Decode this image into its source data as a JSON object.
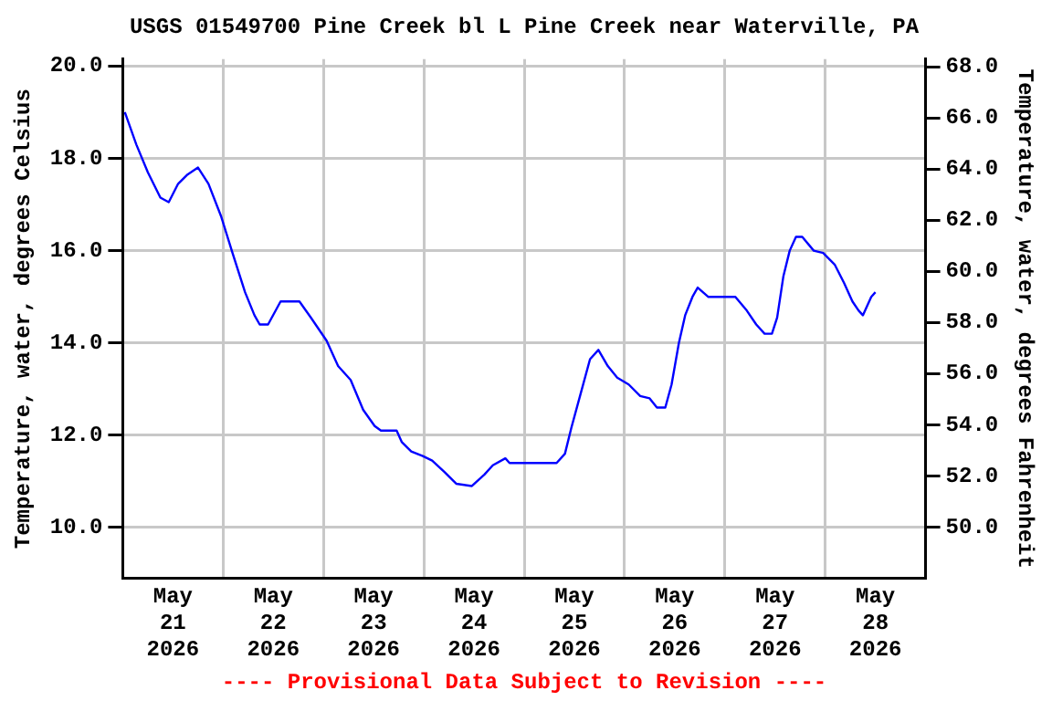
{
  "chart_data": {
    "type": "line",
    "title": "USGS 01549700 Pine Creek bl L Pine Creek near Waterville, PA",
    "ylabel": "Temperature, water, degrees Celsius",
    "y2label": "Temperature, water, degrees Fahrenheit",
    "annotations": [
      "---- Provisional Data Subject to Revision ----"
    ],
    "xlim": [
      "2026-05-21T00:00",
      "2026-05-29T00:00"
    ],
    "xticks": [
      {
        "value": "2026-05-21T12:00",
        "label": "May 21 2026"
      },
      {
        "value": "2026-05-22T00:00",
        "label": null
      },
      {
        "value": "2026-05-22T12:00",
        "label": "May 22 2026"
      },
      {
        "value": "2026-05-23T00:00",
        "label": null
      },
      {
        "value": "2026-05-23T12:00",
        "label": "May 23 2026"
      },
      {
        "value": "2026-05-24T00:00",
        "label": null
      },
      {
        "value": "2026-05-24T12:00",
        "label": "May 24 2026"
      },
      {
        "value": "2026-05-25T00:00",
        "label": null
      },
      {
        "value": "2026-05-25T12:00",
        "label": "May 25 2026"
      },
      {
        "value": "2026-05-26T00:00",
        "label": null
      },
      {
        "value": "2026-05-26T12:00",
        "label": "May 26 2026"
      },
      {
        "value": "2026-05-27T00:00",
        "label": null
      },
      {
        "value": "2026-05-27T12:00",
        "label": "May 27 2026"
      },
      {
        "value": "2026-05-28T00:00",
        "label": null
      },
      {
        "value": "2026-05-28T12:00",
        "label": "May 28 2026"
      }
    ],
    "ylim": [
      8.9,
      20.15
    ],
    "yticks": [
      {
        "value": 10,
        "label": "10.0"
      },
      {
        "value": 12,
        "label": "12.0"
      },
      {
        "value": 14,
        "label": "14.0"
      },
      {
        "value": 16,
        "label": "16.0"
      },
      {
        "value": 18,
        "label": "18.0"
      },
      {
        "value": 20,
        "label": "20.0"
      }
    ],
    "y2lim": [
      48.0,
      68.3
    ],
    "y2ticks": [
      {
        "value": 50,
        "label": "50.0"
      },
      {
        "value": 52,
        "label": "52.0"
      },
      {
        "value": 54,
        "label": "54.0"
      },
      {
        "value": 56,
        "label": "56.0"
      },
      {
        "value": 58,
        "label": "58.0"
      },
      {
        "value": 60,
        "label": "60.0"
      },
      {
        "value": 62,
        "label": "62.0"
      },
      {
        "value": 64,
        "label": "64.0"
      },
      {
        "value": 66,
        "label": "66.0"
      },
      {
        "value": 68,
        "label": "68.0"
      }
    ],
    "grid": true,
    "legend": false,
    "marker": "none",
    "line_style": "solid",
    "x": [
      "2026-05-21T00:30",
      "2026-05-21T03:15",
      "2026-05-21T06:00",
      "2026-05-21T09:00",
      "2026-05-21T11:00",
      "2026-05-21T13:15",
      "2026-05-21T15:30",
      "2026-05-21T18:00",
      "2026-05-21T20:30",
      "2026-05-21T23:30",
      "2026-05-22T02:15",
      "2026-05-22T05:15",
      "2026-05-22T07:30",
      "2026-05-22T08:45",
      "2026-05-22T10:45",
      "2026-05-22T13:45",
      "2026-05-22T18:15",
      "2026-05-22T21:00",
      "2026-05-23T00:45",
      "2026-05-23T03:30",
      "2026-05-23T06:30",
      "2026-05-23T09:30",
      "2026-05-23T12:15",
      "2026-05-23T13:45",
      "2026-05-23T17:30",
      "2026-05-23T18:45",
      "2026-05-23T21:00",
      "2026-05-23T23:45",
      "2026-05-24T02:00",
      "2026-05-24T05:00",
      "2026-05-24T07:45",
      "2026-05-24T11:30",
      "2026-05-24T14:30",
      "2026-05-24T16:30",
      "2026-05-24T19:30",
      "2026-05-24T20:30",
      "2026-05-25T07:45",
      "2026-05-25T09:45",
      "2026-05-25T11:15",
      "2026-05-25T13:30",
      "2026-05-25T15:45",
      "2026-05-25T17:45",
      "2026-05-25T20:00",
      "2026-05-25T22:15",
      "2026-05-26T01:00",
      "2026-05-26T03:45",
      "2026-05-26T06:00",
      "2026-05-26T07:45",
      "2026-05-26T09:45",
      "2026-05-26T11:15",
      "2026-05-26T13:00",
      "2026-05-26T14:30",
      "2026-05-26T16:15",
      "2026-05-26T17:30",
      "2026-05-26T20:00",
      "2026-05-27T02:30",
      "2026-05-27T05:15",
      "2026-05-27T07:30",
      "2026-05-27T09:30",
      "2026-05-27T11:15",
      "2026-05-27T12:30",
      "2026-05-27T14:00",
      "2026-05-27T15:30",
      "2026-05-27T17:00",
      "2026-05-27T18:30",
      "2026-05-27T21:15",
      "2026-05-27T23:30",
      "2026-05-28T02:15",
      "2026-05-28T04:30",
      "2026-05-28T06:30",
      "2026-05-28T08:00",
      "2026-05-28T09:00",
      "2026-05-28T11:00",
      "2026-05-28T12:00"
    ],
    "series": [
      {
        "color": "#0000ff",
        "values": [
          19.0,
          18.3,
          17.7,
          17.15,
          17.05,
          17.45,
          17.65,
          17.8,
          17.45,
          16.75,
          15.95,
          15.1,
          14.6,
          14.4,
          14.4,
          14.9,
          14.9,
          14.55,
          14.05,
          13.5,
          13.2,
          12.55,
          12.2,
          12.1,
          12.1,
          11.85,
          11.65,
          11.55,
          11.45,
          11.2,
          10.95,
          10.9,
          11.15,
          11.35,
          11.5,
          11.4,
          11.4,
          11.6,
          12.15,
          12.9,
          13.65,
          13.85,
          13.5,
          13.25,
          13.1,
          12.85,
          12.8,
          12.6,
          12.6,
          13.1,
          14.0,
          14.6,
          15.0,
          15.2,
          15.0,
          15.0,
          14.7,
          14.4,
          14.2,
          14.2,
          14.55,
          15.45,
          16.0,
          16.3,
          16.3,
          16.0,
          15.95,
          15.7,
          15.3,
          14.9,
          14.7,
          14.6,
          15.0,
          15.1
        ]
      }
    ]
  }
}
